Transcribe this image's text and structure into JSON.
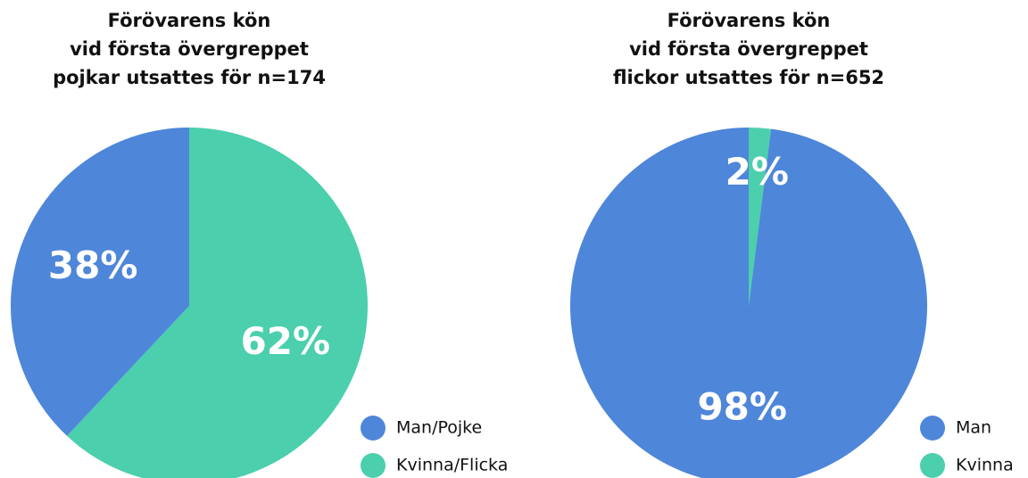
{
  "chart_data": [
    {
      "type": "pie",
      "title": [
        "Förövarens kön",
        "vid första övergreppet",
        "pojkar utsattes för n=174"
      ],
      "categories": [
        "Man/Pojke",
        "Kvinna/Flicka"
      ],
      "values": [
        38,
        62
      ],
      "value_labels": [
        "38%",
        "62%"
      ],
      "colors": [
        "#4e86d9",
        "#4bcfad"
      ]
    },
    {
      "type": "pie",
      "title": [
        "Förövarens kön",
        "vid första övergreppet",
        "flickor utsattes för n=652"
      ],
      "categories": [
        "Man",
        "Kvinna"
      ],
      "values": [
        98,
        2
      ],
      "value_labels": [
        "98%",
        "2%"
      ],
      "colors": [
        "#4e86d9",
        "#4bcfad"
      ]
    }
  ]
}
